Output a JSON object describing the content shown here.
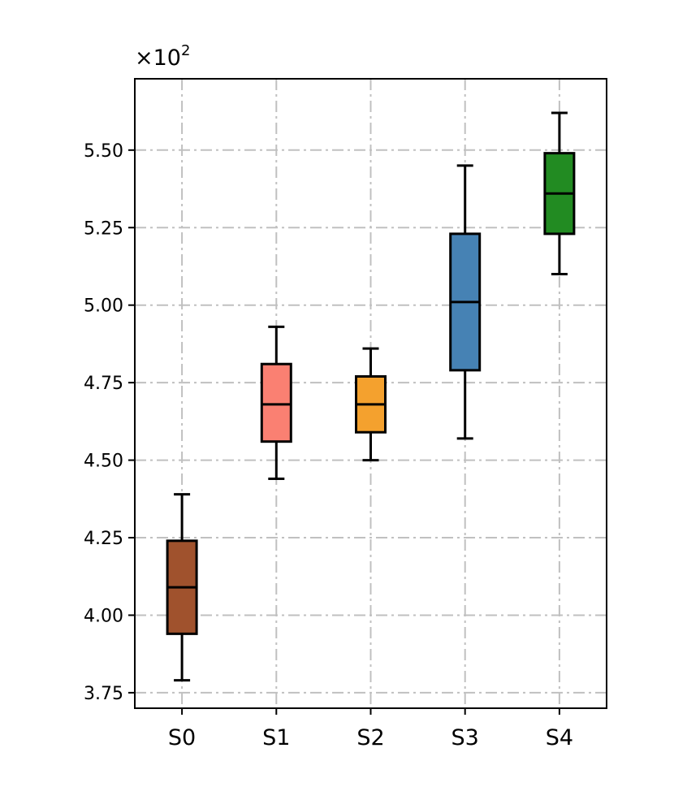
{
  "chart_data": {
    "type": "boxplot",
    "title": "",
    "xlabel": "",
    "ylabel": "",
    "offset_text_base": "×10",
    "offset_text_exp": "2",
    "categories": [
      "S0",
      "S1",
      "S2",
      "S3",
      "S4"
    ],
    "ylim": [
      3.7,
      5.73
    ],
    "yticks": [
      3.75,
      4.0,
      4.25,
      4.5,
      4.75,
      5.0,
      5.25,
      5.5
    ],
    "ytick_labels": [
      "3.75",
      "4.00",
      "4.25",
      "4.50",
      "4.75",
      "5.00",
      "5.25",
      "5.50"
    ],
    "grid": true,
    "boxes": [
      {
        "name": "S0",
        "whisker_low": 3.79,
        "q1": 3.94,
        "median": 4.09,
        "q3": 4.24,
        "whisker_high": 4.39,
        "color": "#a0522d"
      },
      {
        "name": "S1",
        "whisker_low": 4.44,
        "q1": 4.56,
        "median": 4.68,
        "q3": 4.81,
        "whisker_high": 4.93,
        "color": "#fa8072"
      },
      {
        "name": "S2",
        "whisker_low": 4.5,
        "q1": 4.59,
        "median": 4.68,
        "q3": 4.77,
        "whisker_high": 4.86,
        "color": "#f4a12e"
      },
      {
        "name": "S3",
        "whisker_low": 4.57,
        "q1": 4.79,
        "median": 5.01,
        "q3": 5.23,
        "whisker_high": 5.45,
        "color": "#4682b4"
      },
      {
        "name": "S4",
        "whisker_low": 5.1,
        "q1": 5.23,
        "median": 5.36,
        "q3": 5.49,
        "whisker_high": 5.62,
        "color": "#228b22"
      }
    ]
  }
}
